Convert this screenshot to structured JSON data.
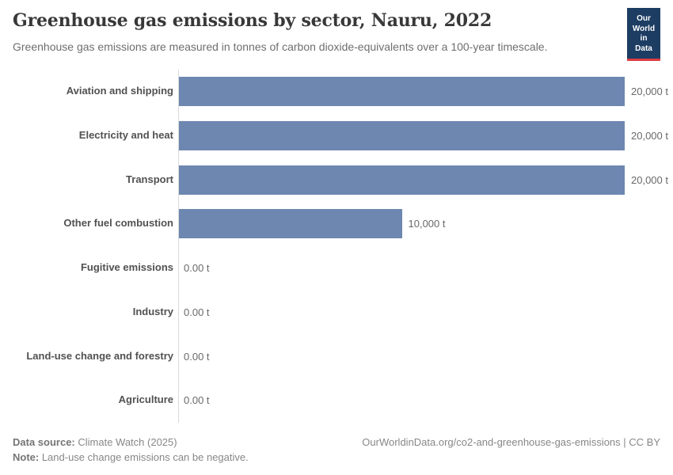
{
  "header": {
    "title": "Greenhouse gas emissions by sector, Nauru, 2022",
    "subtitle": "Greenhouse gas emissions are measured in tonnes of carbon dioxide-equivalents over a 100-year timescale.",
    "logo_line1": "Our World",
    "logo_line2": "in Data"
  },
  "chart_data": {
    "type": "bar",
    "orientation": "horizontal",
    "title": "Greenhouse gas emissions by sector, Nauru, 2022",
    "xlabel": "",
    "ylabel": "",
    "unit": "t",
    "xmax": 20000,
    "grid": false,
    "legend": false,
    "bar_color": "#6d87b0",
    "categories": [
      "Aviation and shipping",
      "Electricity and heat",
      "Transport",
      "Other fuel combustion",
      "Fugitive emissions",
      "Industry",
      "Land-use change and forestry",
      "Agriculture"
    ],
    "values": [
      20000,
      20000,
      20000,
      10000,
      0,
      0,
      0,
      0
    ],
    "value_labels": [
      "20,000 t",
      "20,000 t",
      "20,000 t",
      "10,000 t",
      "0.00 t",
      "0.00 t",
      "0.00 t",
      "0.00 t"
    ]
  },
  "footer": {
    "data_source_label": "Data source:",
    "data_source_value": " Climate Watch (2025)",
    "note_label": "Note:",
    "note_value": " Land-use change emissions can be negative.",
    "link": "OurWorldinData.org/co2-and-greenhouse-gas-emissions | CC BY"
  },
  "colors": {
    "bar": "#6d87b0",
    "axis_line": "#dbdbdb",
    "logo_background": "#1d3d63",
    "logo_accent": "#dc3d43",
    "title_text": "#383838",
    "subtitle_text": "#6e6e6e"
  }
}
